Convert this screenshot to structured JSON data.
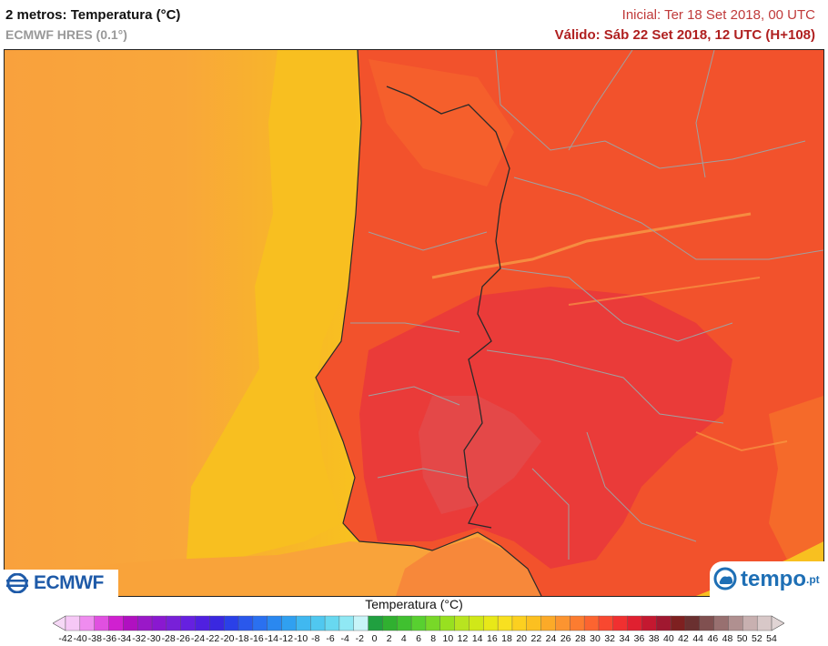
{
  "header": {
    "title": "2 metros: Temperatura (°C)",
    "subtitle": "ECMWF HRES (0.1°)",
    "initial": "Inicial: Ter 18 Set 2018, 00 UTC",
    "valid": "Válido: Sáb 22 Set 2018, 12 UTC (H+108)"
  },
  "logos": {
    "ecmwf": "ECMWF",
    "tempo": "tempo",
    "tempo_suffix": ".pt"
  },
  "legend": {
    "title": "Temperatura (°C)",
    "labels": [
      "-42",
      "-40",
      "-38",
      "-36",
      "-34",
      "-32",
      "-30",
      "-28",
      "-26",
      "-24",
      "-22",
      "-20",
      "-18",
      "-16",
      "-14",
      "-12",
      "-10",
      "-8",
      "-6",
      "-4",
      "-2",
      "0",
      "2",
      "4",
      "6",
      "8",
      "10",
      "12",
      "14",
      "16",
      "18",
      "20",
      "22",
      "24",
      "26",
      "28",
      "30",
      "32",
      "34",
      "36",
      "38",
      "40",
      "42",
      "44",
      "46",
      "48",
      "50",
      "52",
      "54"
    ],
    "colors": [
      "#f6c8f6",
      "#ef8cef",
      "#e050e0",
      "#d020d0",
      "#b010c0",
      "#9a18c8",
      "#8a18d0",
      "#7820d8",
      "#6620e0",
      "#5020e0",
      "#3a28e0",
      "#2a40e8",
      "#2a58ec",
      "#2a70f0",
      "#2a88f0",
      "#30a0f0",
      "#40b8f0",
      "#50c8f0",
      "#68d8f0",
      "#90e8f4",
      "#c8f4f8",
      "#20a040",
      "#30b030",
      "#40c030",
      "#58d030",
      "#78d828",
      "#98e020",
      "#b8e420",
      "#d0e818",
      "#e8e818",
      "#f8e020",
      "#fcd020",
      "#fcc020",
      "#fcaa28",
      "#fc9430",
      "#fc7c30",
      "#fc6430",
      "#f84830",
      "#f03030",
      "#e02030",
      "#c41830",
      "#a01830",
      "#7e2020",
      "#6a3030",
      "#805050",
      "#987070",
      "#b09090",
      "#c8b0b0",
      "#d8c8c8"
    ]
  },
  "map_colors": {
    "sea_far": "#f9a13d",
    "sea_yellow": "#f8bd22",
    "land": "#f2522c",
    "land_hot": "#eb3a38",
    "border": "#2a2a2a",
    "region": "#a0a0a0"
  }
}
